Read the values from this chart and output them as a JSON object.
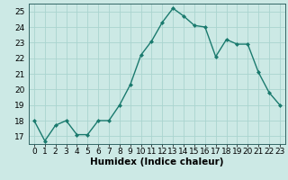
{
  "x": [
    0,
    1,
    2,
    3,
    4,
    5,
    6,
    7,
    8,
    9,
    10,
    11,
    12,
    13,
    14,
    15,
    16,
    17,
    18,
    19,
    20,
    21,
    22,
    23
  ],
  "y": [
    18.0,
    16.7,
    17.7,
    18.0,
    17.1,
    17.1,
    18.0,
    18.0,
    19.0,
    20.3,
    22.2,
    23.1,
    24.3,
    25.2,
    24.7,
    24.1,
    24.0,
    22.1,
    23.2,
    22.9,
    22.9,
    21.1,
    19.8,
    19.0
  ],
  "line_color": "#1a7a6e",
  "marker": "D",
  "marker_size": 2.0,
  "bg_color": "#cce9e5",
  "grid_color": "#aad4cf",
  "axis_color": "#336666",
  "xlabel": "Humidex (Indice chaleur)",
  "ylabel": "",
  "xlim": [
    -0.5,
    23.5
  ],
  "ylim": [
    16.5,
    25.5
  ],
  "yticks": [
    17,
    18,
    19,
    20,
    21,
    22,
    23,
    24,
    25
  ],
  "xticks": [
    0,
    1,
    2,
    3,
    4,
    5,
    6,
    7,
    8,
    9,
    10,
    11,
    12,
    13,
    14,
    15,
    16,
    17,
    18,
    19,
    20,
    21,
    22,
    23
  ],
  "xlabel_fontsize": 7.5,
  "tick_fontsize": 6.5,
  "line_width": 1.0
}
